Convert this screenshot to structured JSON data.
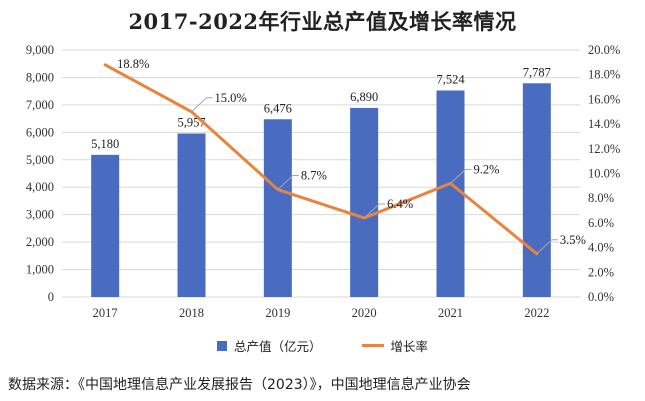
{
  "chart_data": {
    "type": "bar+line",
    "title": "2017-2022年行业总产值及增长率情况",
    "categories": [
      "2017",
      "2018",
      "2019",
      "2020",
      "2021",
      "2022"
    ],
    "series": [
      {
        "name": "总产值（亿元）",
        "type": "bar",
        "axis": "left",
        "values": [
          5180,
          5957,
          6476,
          6890,
          7524,
          7787
        ],
        "labels": [
          "5,180",
          "5,957",
          "6,476",
          "6,890",
          "7,524",
          "7,787"
        ]
      },
      {
        "name": "增长率",
        "type": "line",
        "axis": "right",
        "values": [
          18.8,
          15.0,
          8.7,
          6.4,
          9.2,
          3.5
        ],
        "labels": [
          "18.8%",
          "15.0%",
          "8.7%",
          "6.4%",
          "9.2%",
          "3.5%"
        ]
      }
    ],
    "y_left": {
      "ylim": [
        0,
        9000
      ],
      "ticks": [
        "0",
        "1,000",
        "2,000",
        "3,000",
        "4,000",
        "5,000",
        "6,000",
        "7,000",
        "8,000",
        "9,000"
      ]
    },
    "y_right": {
      "ylim": [
        0,
        20
      ],
      "ticks": [
        "0.0%",
        "2.0%",
        "4.0%",
        "6.0%",
        "8.0%",
        "10.0%",
        "12.0%",
        "14.0%",
        "16.0%",
        "18.0%",
        "20.0%"
      ]
    },
    "grid": "horizontal",
    "legend_position": "bottom"
  },
  "colors": {
    "bar": "#4a6cc0",
    "line": "#e8843d",
    "grid": "#d9d9d9",
    "leader": "#a6a6a6"
  },
  "source_note": "数据来源：《中国地理信息产业发展报告（2023）》，中国地理信息产业协会"
}
